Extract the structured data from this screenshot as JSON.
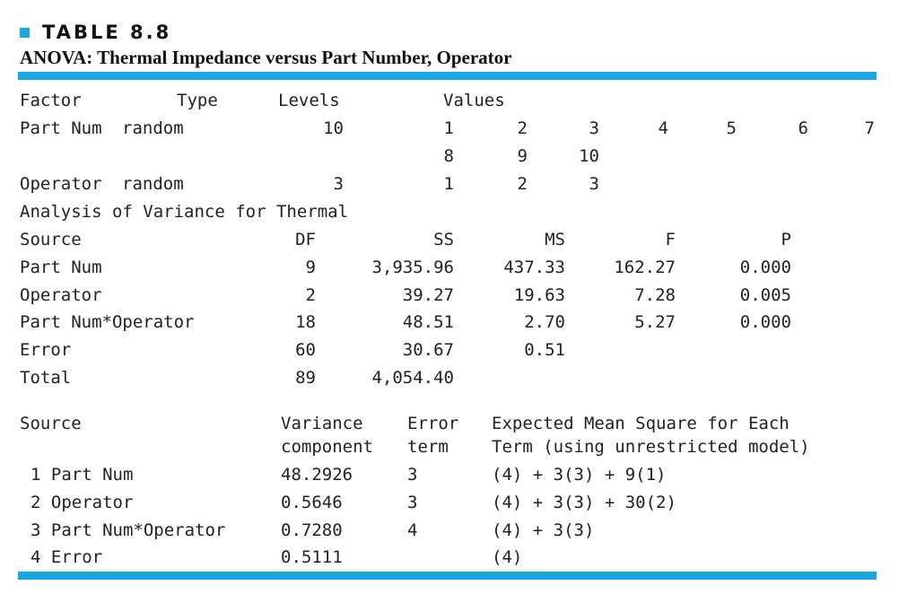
{
  "table_label": "TABLE 8.8",
  "table_title": "ANOVA: Thermal Impedance versus Part Number, Operator",
  "factor_header": {
    "factor": "Factor",
    "type": "Type",
    "levels": "Levels",
    "values": "Values"
  },
  "factors": [
    {
      "name": "Part Num",
      "type": "random",
      "levels": "10",
      "values": [
        "1",
        "2",
        "3",
        "4",
        "5",
        "6",
        "7",
        "8",
        "9",
        "10"
      ]
    },
    {
      "name": "Operator",
      "type": "random",
      "levels": "3",
      "values": [
        "1",
        "2",
        "3"
      ]
    }
  ],
  "anova_heading": "Analysis of Variance for Thermal",
  "anova_header": {
    "source": "Source",
    "df": "DF",
    "ss": "SS",
    "ms": "MS",
    "f": "F",
    "p": "P"
  },
  "anova_rows": [
    {
      "source": "Part Num",
      "df": "9",
      "ss": "3,935.96",
      "ms": "437.33",
      "f": "162.27",
      "p": "0.000"
    },
    {
      "source": "Operator",
      "df": "2",
      "ss": "39.27",
      "ms": "19.63",
      "f": "7.28",
      "p": "0.005"
    },
    {
      "source": "Part Num*Operator",
      "df": "18",
      "ss": "48.51",
      "ms": "2.70",
      "f": "5.27",
      "p": "0.000"
    },
    {
      "source": "Error",
      "df": "60",
      "ss": "30.67",
      "ms": "0.51",
      "f": "",
      "p": ""
    },
    {
      "source": "Total",
      "df": "89",
      "ss": "4,054.40",
      "ms": "",
      "f": "",
      "p": ""
    }
  ],
  "vc_header": {
    "source": "Source",
    "vc_line1": "Variance",
    "vc_line2": "component",
    "et_line1": "Error",
    "et_line2": "term",
    "ems_line1": "Expected Mean Square for Each",
    "ems_line2": "Term (using unrestricted model)"
  },
  "vc_rows": [
    {
      "source": "1 Part Num",
      "vc": "48.2926",
      "et": "3",
      "ems": "(4) + 3(3) + 9(1)"
    },
    {
      "source": "2 Operator",
      "vc": "0.5646",
      "et": "3",
      "ems": "(4) + 3(3) + 30(2)"
    },
    {
      "source": "3 Part Num*Operator",
      "vc": "0.7280",
      "et": "4",
      "ems": "(4) + 3(3)"
    },
    {
      "source": "4 Error",
      "vc": "0.5111",
      "et": "",
      "ems": "(4)"
    }
  ],
  "colors": {
    "accent": "#1aa6e0",
    "text": "#222222"
  }
}
